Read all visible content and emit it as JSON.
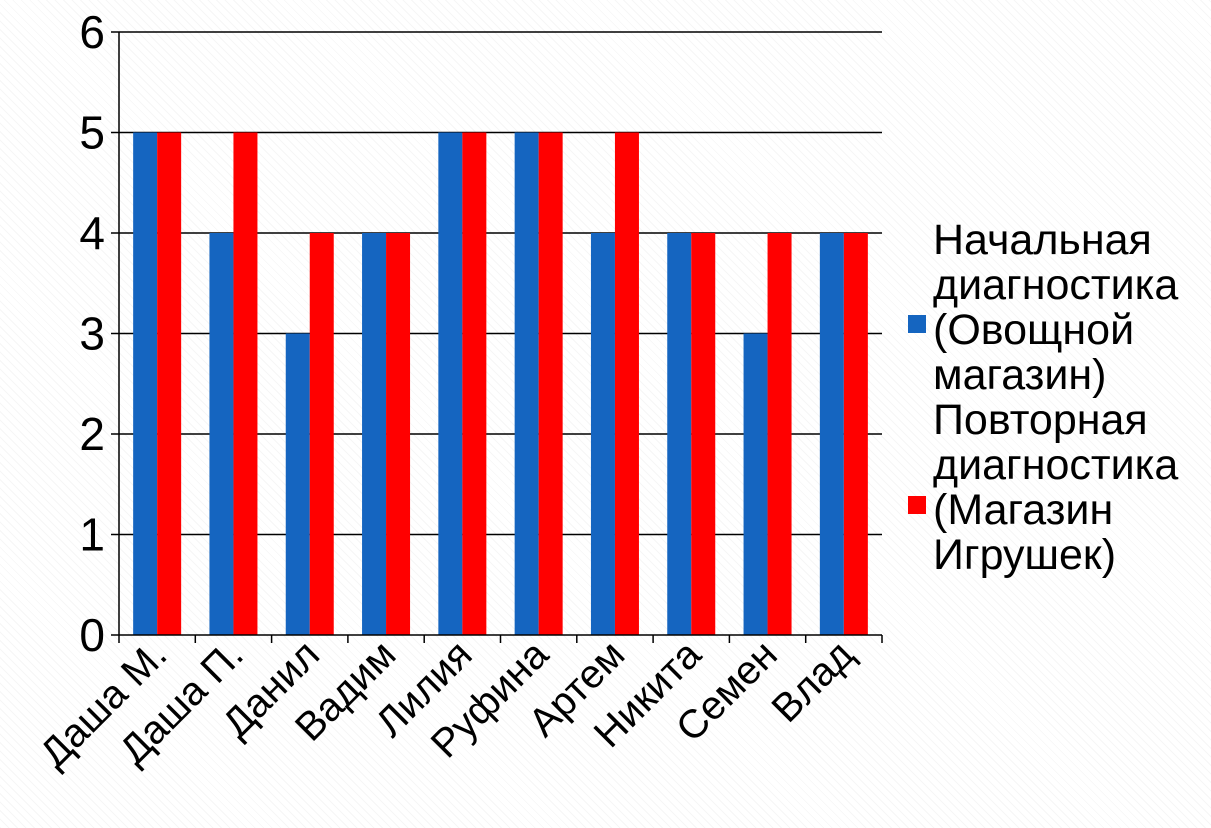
{
  "chart_data": {
    "type": "bar",
    "title": "",
    "xlabel": "",
    "ylabel": "",
    "categories": [
      "Даша М.",
      "Даша П.",
      "Данил",
      "Вадим",
      "Лилия",
      "Руфина",
      "Артем",
      "Никита",
      "Семен",
      "Влад"
    ],
    "series": [
      {
        "name": "Начальная\nдиагностика\n(Овощной\nмагазин)",
        "color": "#1565C0",
        "values": [
          5,
          4,
          3,
          4,
          5,
          5,
          4,
          4,
          3,
          4
        ]
      },
      {
        "name": "Повторная\nдиагностика\n(Магазин\nИгрушек)",
        "color": "#FF0000",
        "values": [
          5,
          5,
          4,
          4,
          5,
          5,
          5,
          4,
          4,
          4
        ]
      }
    ],
    "ylim": [
      0,
      6
    ],
    "yticks": [
      0,
      1,
      2,
      3,
      4,
      5,
      6
    ],
    "grid": true,
    "legend_position": "right"
  }
}
